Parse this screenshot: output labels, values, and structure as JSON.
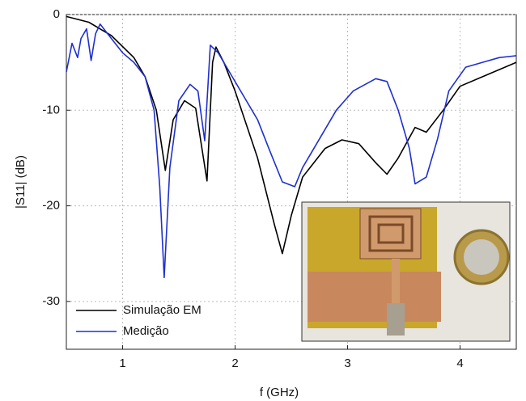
{
  "chart_data": {
    "type": "line",
    "x_label": "f (GHz)",
    "y_label": "|S11| (dB)",
    "xlim": [
      0.5,
      4.5
    ],
    "ylim": [
      -35,
      0
    ],
    "xticks": [
      1,
      2,
      3,
      4
    ],
    "yticks": [
      0,
      -10,
      -20,
      -30
    ],
    "grid": true,
    "legend": "lower left",
    "series": [
      {
        "name": "Simulação EM",
        "color": "#000000",
        "x": [
          0.5,
          0.7,
          0.9,
          1.1,
          1.2,
          1.3,
          1.38,
          1.45,
          1.55,
          1.65,
          1.75,
          1.8,
          1.83,
          1.9,
          2.0,
          2.2,
          2.35,
          2.42,
          2.5,
          2.6,
          2.8,
          2.95,
          3.1,
          3.25,
          3.35,
          3.45,
          3.6,
          3.7,
          3.85,
          4.0,
          4.2,
          4.5
        ],
        "values": [
          -0.2,
          -0.8,
          -2.2,
          -4.5,
          -6.5,
          -10,
          -16.3,
          -11,
          -9,
          -9.8,
          -17.4,
          -5,
          -3.4,
          -5,
          -8,
          -15,
          -22,
          -25,
          -21,
          -17,
          -14,
          -13.1,
          -13.5,
          -15.5,
          -16.7,
          -15,
          -11.8,
          -12.3,
          -10,
          -7.5,
          -6.5,
          -5
        ]
      },
      {
        "name": "Medição",
        "color": "#1f2fd0",
        "x": [
          0.5,
          0.55,
          0.6,
          0.63,
          0.68,
          0.72,
          0.76,
          0.8,
          0.9,
          1.0,
          1.1,
          1.2,
          1.28,
          1.33,
          1.37,
          1.42,
          1.5,
          1.6,
          1.67,
          1.73,
          1.78,
          1.85,
          1.95,
          2.1,
          2.2,
          2.3,
          2.42,
          2.53,
          2.6,
          2.75,
          2.9,
          3.05,
          3.25,
          3.35,
          3.45,
          3.55,
          3.6,
          3.7,
          3.8,
          3.9,
          4.05,
          4.2,
          4.35,
          4.5
        ],
        "values": [
          -6,
          -3,
          -4.5,
          -2.5,
          -1.5,
          -4.8,
          -2,
          -1,
          -2.5,
          -4,
          -5,
          -6.5,
          -10,
          -18,
          -27.5,
          -16,
          -9,
          -7.3,
          -8,
          -13.2,
          -3.2,
          -4,
          -6,
          -9,
          -11,
          -14,
          -17.5,
          -18,
          -16,
          -13,
          -10,
          -8,
          -6.7,
          -7,
          -10,
          -14,
          -17.7,
          -17,
          -13,
          -8,
          -5.5,
          -5,
          -4.5,
          -4.3
        ]
      }
    ]
  }
}
